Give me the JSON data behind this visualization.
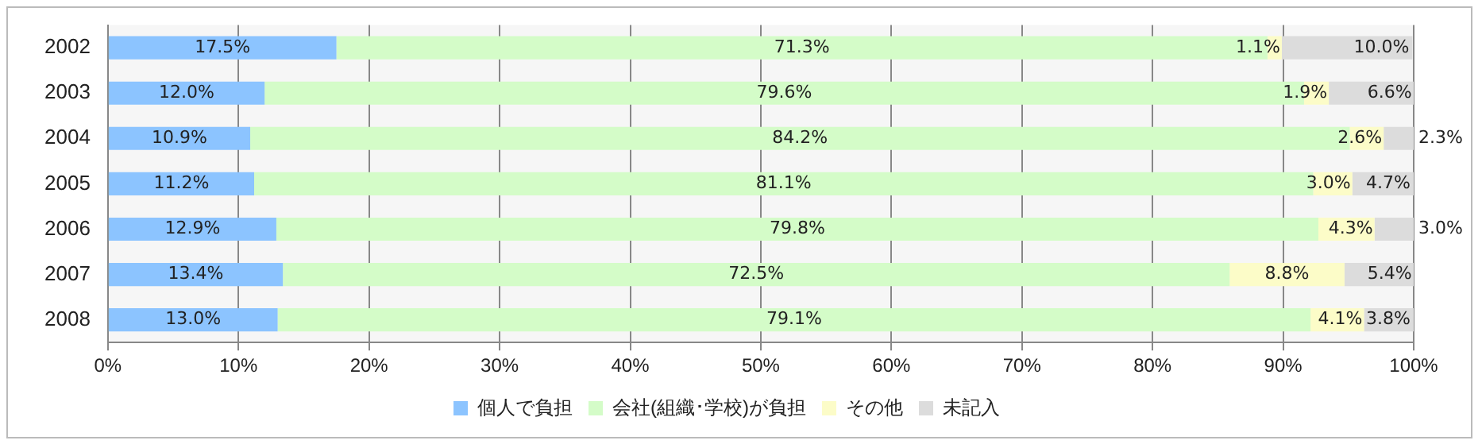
{
  "chart_data": {
    "type": "bar",
    "orientation": "horizontal",
    "stacked": true,
    "categories": [
      "2002",
      "2003",
      "2004",
      "2005",
      "2006",
      "2007",
      "2008"
    ],
    "series": [
      {
        "name": "個人で負担",
        "color": "#8cc4ff",
        "values": [
          17.5,
          12.0,
          10.9,
          11.2,
          12.9,
          13.4,
          13.0
        ],
        "value_labels": [
          "17.5%",
          "12.0%",
          "10.9%",
          "11.2%",
          "12.9%",
          "13.4%",
          "13.0%"
        ]
      },
      {
        "name": "会社(組織･学校)が負担",
        "color": "#d4fcc8",
        "values": [
          71.3,
          79.6,
          84.2,
          81.1,
          79.8,
          72.5,
          79.1
        ],
        "value_labels": [
          "71.3%",
          "79.6%",
          "84.2%",
          "81.1%",
          "79.8%",
          "72.5%",
          "79.1%"
        ]
      },
      {
        "name": "その他",
        "color": "#fcfcc8",
        "values": [
          1.1,
          1.9,
          2.6,
          3.0,
          4.3,
          8.8,
          4.1
        ],
        "value_labels": [
          "1.1%",
          "1.9%",
          "2.6%",
          "3.0%",
          "4.3%",
          "8.8%",
          "4.1%"
        ]
      },
      {
        "name": "未記入",
        "color": "#dcdcdc",
        "values": [
          10.0,
          6.6,
          2.3,
          4.7,
          3.0,
          5.4,
          3.8
        ],
        "value_labels": [
          "10.0%",
          "6.6%",
          "2.3%",
          "4.7%",
          "3.0%",
          "5.4%",
          "3.8%"
        ]
      }
    ],
    "xlim": [
      0,
      100
    ],
    "xticks": [
      {
        "value": 0,
        "label": "0%"
      },
      {
        "value": 10,
        "label": "10%"
      },
      {
        "value": 20,
        "label": "20%"
      },
      {
        "value": 30,
        "label": "30%"
      },
      {
        "value": 40,
        "label": "40%"
      },
      {
        "value": 50,
        "label": "50%"
      },
      {
        "value": 60,
        "label": "60%"
      },
      {
        "value": 70,
        "label": "70%"
      },
      {
        "value": 80,
        "label": "80%"
      },
      {
        "value": 90,
        "label": "90%"
      },
      {
        "value": 100,
        "label": "100%"
      }
    ],
    "grid": "x",
    "legend": "bottom"
  }
}
